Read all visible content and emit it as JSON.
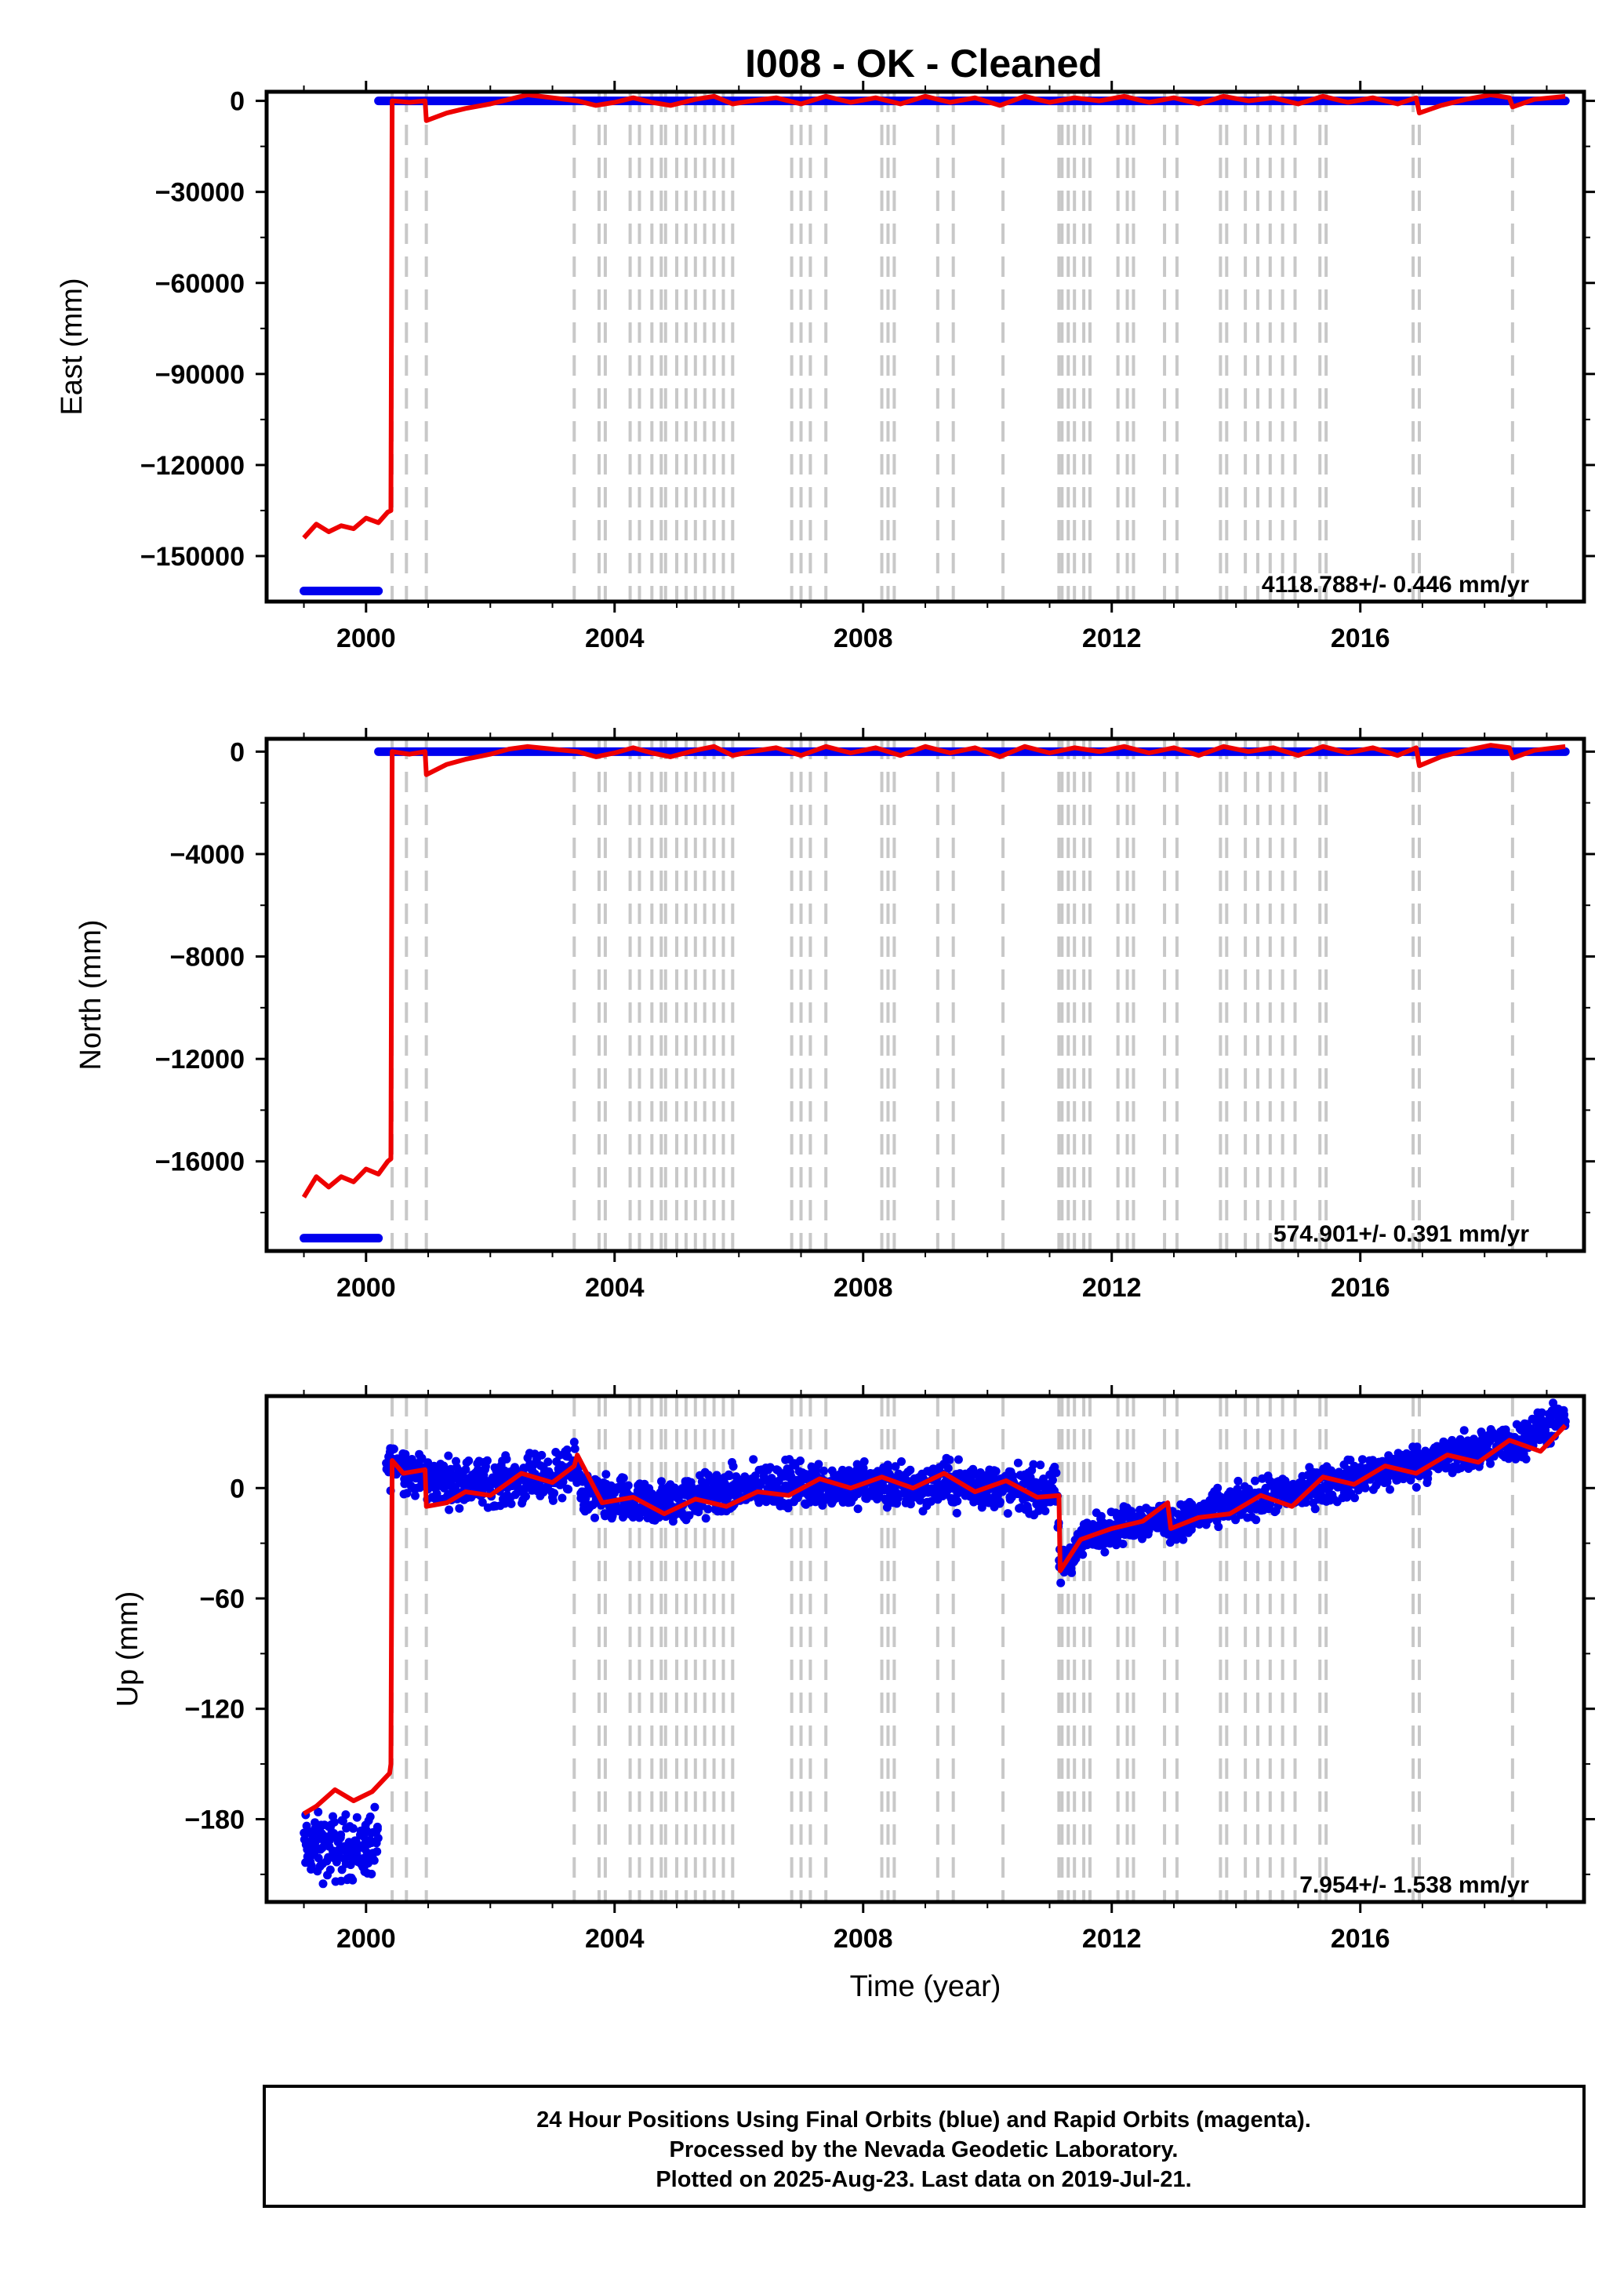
{
  "figure": {
    "title": "I008  - OK - Cleaned",
    "footer": [
      "24 Hour Positions Using Final Orbits (blue) and Rapid Orbits (magenta).",
      "Processed by the Nevada Geodetic Laboratory.",
      "Plotted on 2025-Aug-23. Last data on 2019-Jul-21."
    ]
  },
  "colors": {
    "final_orbits": "#0000ee",
    "model": "#ee0000",
    "steps": "#c8c8c8",
    "frame": "#000000"
  },
  "chart_data": [
    {
      "type": "scatter",
      "ylabel": "East (mm)",
      "xlabel": "",
      "xlim": [
        1998.4,
        2019.6
      ],
      "ylim": [
        -165000,
        3000
      ],
      "xticks": [
        2000,
        2004,
        2008,
        2012,
        2016
      ],
      "yticks": [
        0,
        -30000,
        -60000,
        -90000,
        -120000,
        -150000
      ],
      "rate": "4118.788+/- 0.446 mm/yr",
      "blue_segments": [
        {
          "x": [
            1999.0,
            2000.2
          ],
          "y": [
            -161500,
            -161500
          ]
        },
        {
          "x": [
            2000.2,
            2019.3
          ],
          "y": [
            0,
            0
          ]
        }
      ],
      "model": {
        "x": [
          1999.0,
          1999.2,
          1999.4,
          1999.6,
          1999.8,
          2000.0,
          2000.2,
          2000.35,
          2000.4,
          2000.42,
          2000.7,
          2000.95,
          2000.97,
          2001.3,
          2001.6,
          2002.0,
          2002.3,
          2002.6,
          2003.0,
          2003.4,
          2003.7,
          2004.0,
          2004.3,
          2004.6,
          2004.9,
          2005.3,
          2005.6,
          2005.9,
          2006.2,
          2006.6,
          2007.0,
          2007.4,
          2007.8,
          2008.2,
          2008.6,
          2009.0,
          2009.4,
          2009.8,
          2010.2,
          2010.6,
          2011.0,
          2011.4,
          2011.8,
          2012.2,
          2012.6,
          2013.0,
          2013.4,
          2013.8,
          2014.2,
          2014.6,
          2015.0,
          2015.4,
          2015.8,
          2016.2,
          2016.6,
          2016.9,
          2016.95,
          2017.3,
          2017.7,
          2018.1,
          2018.4,
          2018.45,
          2018.8,
          2019.3
        ],
        "y": [
          -144000,
          -139500,
          -142000,
          -140000,
          -141000,
          -137500,
          -139000,
          -135500,
          -135000,
          0,
          -500,
          0,
          -6500,
          -4000,
          -2500,
          -1000,
          500,
          2000,
          1000,
          0,
          -1500,
          -500,
          1000,
          -500,
          -1500,
          500,
          1500,
          -1000,
          0,
          1000,
          -1000,
          1500,
          -500,
          1000,
          -1000,
          1500,
          -500,
          1000,
          -1500,
          1500,
          -500,
          1000,
          0,
          1500,
          -500,
          1000,
          -1000,
          1500,
          0,
          1000,
          -1000,
          1500,
          -500,
          1000,
          -1000,
          1000,
          -4000,
          -1500,
          500,
          2000,
          1000,
          -2000,
          500,
          1500
        ]
      }
    },
    {
      "type": "scatter",
      "ylabel": "North (mm)",
      "xlabel": "",
      "xlim": [
        1998.4,
        2019.6
      ],
      "ylim": [
        -19500,
        500
      ],
      "xticks": [
        2000,
        2004,
        2008,
        2012,
        2016
      ],
      "yticks": [
        0,
        -4000,
        -8000,
        -12000,
        -16000
      ],
      "rate": "574.901+/- 0.391 mm/yr",
      "blue_segments": [
        {
          "x": [
            1999.0,
            2000.2
          ],
          "y": [
            -19000,
            -19000
          ]
        },
        {
          "x": [
            2000.2,
            2019.3
          ],
          "y": [
            0,
            0
          ]
        }
      ],
      "model": {
        "x": [
          1999.0,
          1999.2,
          1999.4,
          1999.6,
          1999.8,
          2000.0,
          2000.2,
          2000.35,
          2000.4,
          2000.42,
          2000.7,
          2000.95,
          2000.97,
          2001.3,
          2001.6,
          2002.0,
          2002.3,
          2002.6,
          2003.0,
          2003.4,
          2003.7,
          2004.0,
          2004.3,
          2004.6,
          2004.9,
          2005.3,
          2005.6,
          2005.9,
          2006.2,
          2006.6,
          2007.0,
          2007.4,
          2007.8,
          2008.2,
          2008.6,
          2009.0,
          2009.4,
          2009.8,
          2010.2,
          2010.6,
          2011.0,
          2011.4,
          2011.8,
          2012.2,
          2012.6,
          2013.0,
          2013.4,
          2013.8,
          2014.2,
          2014.6,
          2015.0,
          2015.4,
          2015.8,
          2016.2,
          2016.6,
          2016.9,
          2016.95,
          2017.3,
          2017.7,
          2018.1,
          2018.4,
          2018.45,
          2018.8,
          2019.3
        ],
        "y": [
          -17400,
          -16600,
          -17000,
          -16600,
          -16800,
          -16300,
          -16500,
          -16000,
          -15900,
          0,
          -100,
          0,
          -900,
          -500,
          -300,
          -100,
          100,
          200,
          100,
          0,
          -200,
          -50,
          150,
          -50,
          -200,
          50,
          200,
          -150,
          0,
          150,
          -150,
          200,
          -50,
          150,
          -150,
          200,
          -50,
          150,
          -200,
          200,
          -50,
          150,
          0,
          200,
          -50,
          150,
          -150,
          200,
          0,
          150,
          -150,
          200,
          -50,
          150,
          -150,
          150,
          -550,
          -200,
          50,
          250,
          150,
          -250,
          50,
          200
        ]
      }
    },
    {
      "type": "scatter",
      "ylabel": "Up (mm)",
      "xlabel": "Time (year)",
      "xlim": [
        1998.4,
        2019.6
      ],
      "ylim": [
        -225,
        50
      ],
      "xticks": [
        2000,
        2004,
        2008,
        2012,
        2016
      ],
      "yticks": [
        0,
        -60,
        -120,
        -180
      ],
      "rate": "7.954+/- 1.538 mm/yr",
      "scatter_envelope": {
        "x": [
          1999.0,
          1999.5,
          2000.0,
          2000.2,
          2000.3,
          2000.5,
          2001.0,
          2002.0,
          2003.0,
          2003.4,
          2003.5,
          2004.5,
          2005.5,
          2006.5,
          2007.5,
          2008.5,
          2009.5,
          2010.5,
          2011.1,
          2011.2,
          2011.6,
          2012.2,
          2012.8,
          2013.0,
          2013.8,
          2014.5,
          2015.5,
          2016.5,
          2017.5,
          2018.5,
          2019.3
        ],
        "center": [
          -195,
          -196,
          -195,
          -194,
          12,
          14,
          4,
          3,
          6,
          10,
          -4,
          -10,
          -4,
          2,
          2,
          1,
          2,
          -1,
          -2,
          -43,
          -25,
          -20,
          -16,
          -20,
          -10,
          -5,
          2,
          10,
          18,
          25,
          38
        ],
        "spread": [
          26,
          26,
          26,
          26,
          18,
          18,
          18,
          18,
          18,
          18,
          18,
          18,
          18,
          18,
          18,
          18,
          18,
          18,
          18,
          14,
          14,
          14,
          14,
          14,
          14,
          14,
          15,
          15,
          15,
          15,
          14
        ]
      },
      "model": {
        "x": [
          1999.0,
          1999.2,
          1999.5,
          1999.8,
          2000.1,
          2000.38,
          2000.4,
          2000.42,
          2000.6,
          2000.95,
          2000.97,
          2001.3,
          2001.6,
          2002.0,
          2002.5,
          2003.0,
          2003.35,
          2003.4,
          2003.8,
          2004.3,
          2004.8,
          2005.3,
          2005.8,
          2006.3,
          2006.8,
          2007.3,
          2007.8,
          2008.3,
          2008.8,
          2009.3,
          2009.8,
          2010.3,
          2010.8,
          2011.15,
          2011.17,
          2011.5,
          2012.0,
          2012.5,
          2012.9,
          2012.95,
          2013.4,
          2013.9,
          2014.4,
          2014.9,
          2015.4,
          2015.9,
          2016.4,
          2016.9,
          2017.4,
          2017.9,
          2018.4,
          2018.9,
          2019.3
        ],
        "y": [
          -177,
          -173,
          -164,
          -170,
          -165,
          -155,
          -150,
          15,
          8,
          10,
          -10,
          -8,
          -2,
          -4,
          8,
          3,
          12,
          18,
          -8,
          -5,
          -14,
          -6,
          -10,
          -2,
          -4,
          5,
          0,
          6,
          0,
          8,
          -2,
          4,
          -5,
          -4,
          -45,
          -28,
          -22,
          -18,
          -8,
          -22,
          -16,
          -14,
          -4,
          -10,
          6,
          2,
          12,
          8,
          18,
          14,
          26,
          20,
          34
        ]
      }
    }
  ],
  "steps": [
    2000.42,
    2000.65,
    2000.97,
    2003.35,
    2003.75,
    2003.85,
    2004.25,
    2004.4,
    2004.6,
    2004.75,
    2004.82,
    2005.0,
    2005.15,
    2005.3,
    2005.45,
    2005.6,
    2005.75,
    2005.9,
    2006.85,
    2007.0,
    2007.15,
    2007.4,
    2008.3,
    2008.4,
    2008.5,
    2009.2,
    2009.45,
    2010.25,
    2011.15,
    2011.2,
    2011.3,
    2011.4,
    2011.55,
    2011.65,
    2012.1,
    2012.25,
    2012.35,
    2012.85,
    2013.05,
    2013.75,
    2013.85,
    2014.15,
    2014.35,
    2014.55,
    2014.75,
    2014.95,
    2015.35,
    2015.45,
    2016.85,
    2016.95,
    2018.45
  ]
}
